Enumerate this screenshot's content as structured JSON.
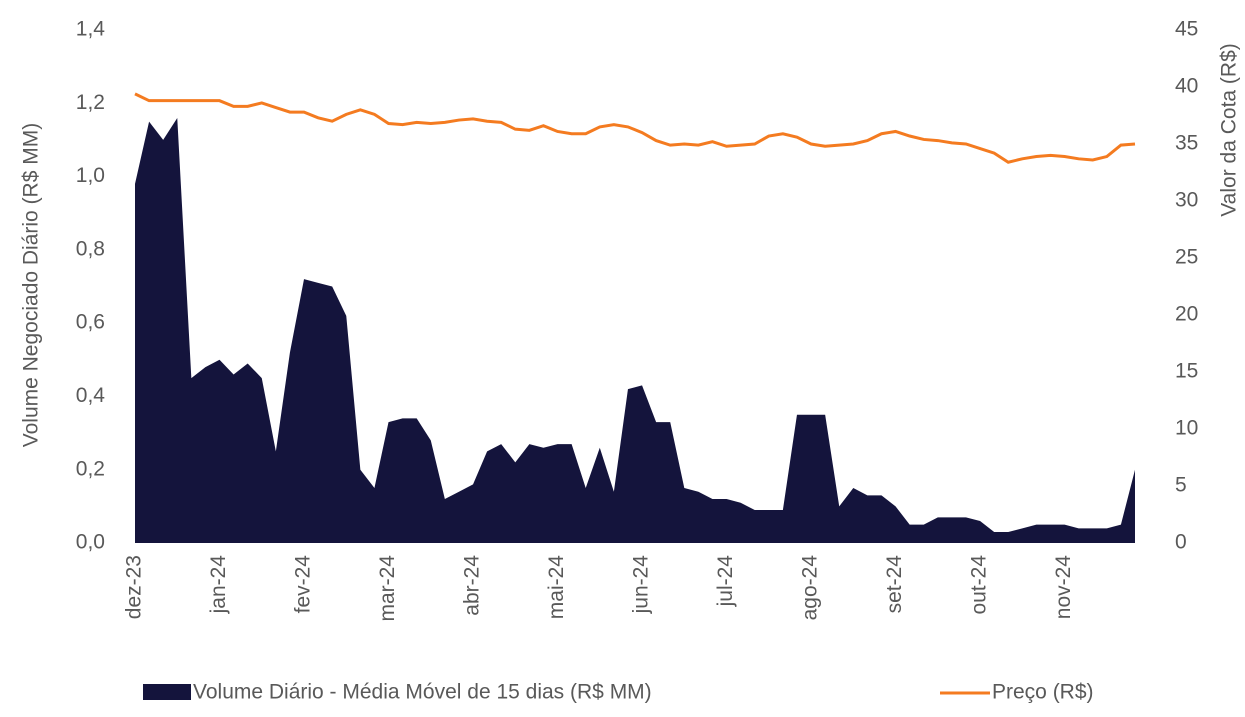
{
  "chart_data": {
    "type": "area_line",
    "y_label": "Volume Negociado Diário (R$ MM)",
    "y2_label": "Valor da Cota (R$)",
    "categories": [
      "dez-23",
      null,
      null,
      null,
      null,
      null,
      "jan-24",
      null,
      null,
      null,
      null,
      null,
      "fev-24",
      null,
      null,
      null,
      null,
      null,
      "mar-24",
      null,
      null,
      null,
      null,
      null,
      "abr-24",
      null,
      null,
      null,
      null,
      null,
      "mai-24",
      null,
      null,
      null,
      null,
      null,
      "jun-24",
      null,
      null,
      null,
      null,
      null,
      "jul-24",
      null,
      null,
      null,
      null,
      null,
      "ago-24",
      null,
      null,
      null,
      null,
      null,
      "set-24",
      null,
      null,
      null,
      null,
      null,
      "out-24",
      null,
      null,
      null,
      null,
      null,
      "nov-24",
      null,
      null,
      null,
      null,
      null
    ],
    "series": [
      {
        "name": "Volume Diário - Média Móvel de 15 dias (R$ MM)",
        "color": "#14143c",
        "axis": "y",
        "values": [
          0.98,
          1.15,
          1.1,
          1.16,
          0.45,
          0.48,
          0.5,
          0.46,
          0.49,
          0.45,
          0.25,
          0.52,
          0.72,
          0.71,
          0.7,
          0.62,
          0.2,
          0.15,
          0.33,
          0.34,
          0.34,
          0.28,
          0.12,
          0.14,
          0.16,
          0.25,
          0.27,
          0.22,
          0.27,
          0.26,
          0.27,
          0.27,
          0.15,
          0.26,
          0.14,
          0.42,
          0.43,
          0.33,
          0.33,
          0.15,
          0.14,
          0.12,
          0.12,
          0.11,
          0.09,
          0.09,
          0.09,
          0.35,
          0.35,
          0.35,
          0.1,
          0.15,
          0.13,
          0.13,
          0.1,
          0.05,
          0.05,
          0.07,
          0.07,
          0.07,
          0.06,
          0.03,
          0.03,
          0.04,
          0.05,
          0.05,
          0.05,
          0.04,
          0.04,
          0.04,
          0.05,
          0.2
        ]
      },
      {
        "name": "Preço (R$)",
        "color": "#f47b20",
        "axis": "y2",
        "values": [
          39.4,
          38.8,
          38.8,
          38.8,
          38.8,
          38.8,
          38.8,
          38.3,
          38.3,
          38.6,
          38.2,
          37.8,
          37.8,
          37.3,
          37.0,
          37.6,
          38.0,
          37.6,
          36.8,
          36.7,
          36.9,
          36.8,
          36.9,
          37.1,
          37.2,
          37.0,
          36.9,
          36.3,
          36.2,
          36.6,
          36.1,
          35.9,
          35.9,
          36.5,
          36.7,
          36.5,
          36.0,
          35.3,
          34.9,
          35.0,
          34.9,
          35.2,
          34.8,
          34.9,
          35.0,
          35.7,
          35.9,
          35.6,
          35.0,
          34.8,
          34.9,
          35.0,
          35.3,
          35.9,
          36.1,
          35.7,
          35.4,
          35.3,
          35.1,
          35.0,
          34.6,
          34.2,
          33.4,
          33.7,
          33.9,
          34.0,
          33.9,
          33.7,
          33.6,
          33.9,
          34.9,
          35.0
        ]
      }
    ],
    "ylim": [
      0,
      1.4
    ],
    "yticks": [
      {
        "value": 0,
        "label": "0,0"
      },
      {
        "value": 0.2,
        "label": "0,2"
      },
      {
        "value": 0.4,
        "label": "0,4"
      },
      {
        "value": 0.6,
        "label": "0,6"
      },
      {
        "value": 0.8,
        "label": "0,8"
      },
      {
        "value": 1.0,
        "label": "1,0"
      },
      {
        "value": 1.2,
        "label": "1,2"
      },
      {
        "value": 1.4,
        "label": "1,4"
      }
    ],
    "y2lim": [
      0,
      45
    ],
    "y2ticks": [
      0,
      5,
      10,
      15,
      20,
      25,
      30,
      35,
      40,
      45
    ],
    "legend": "bottom"
  }
}
